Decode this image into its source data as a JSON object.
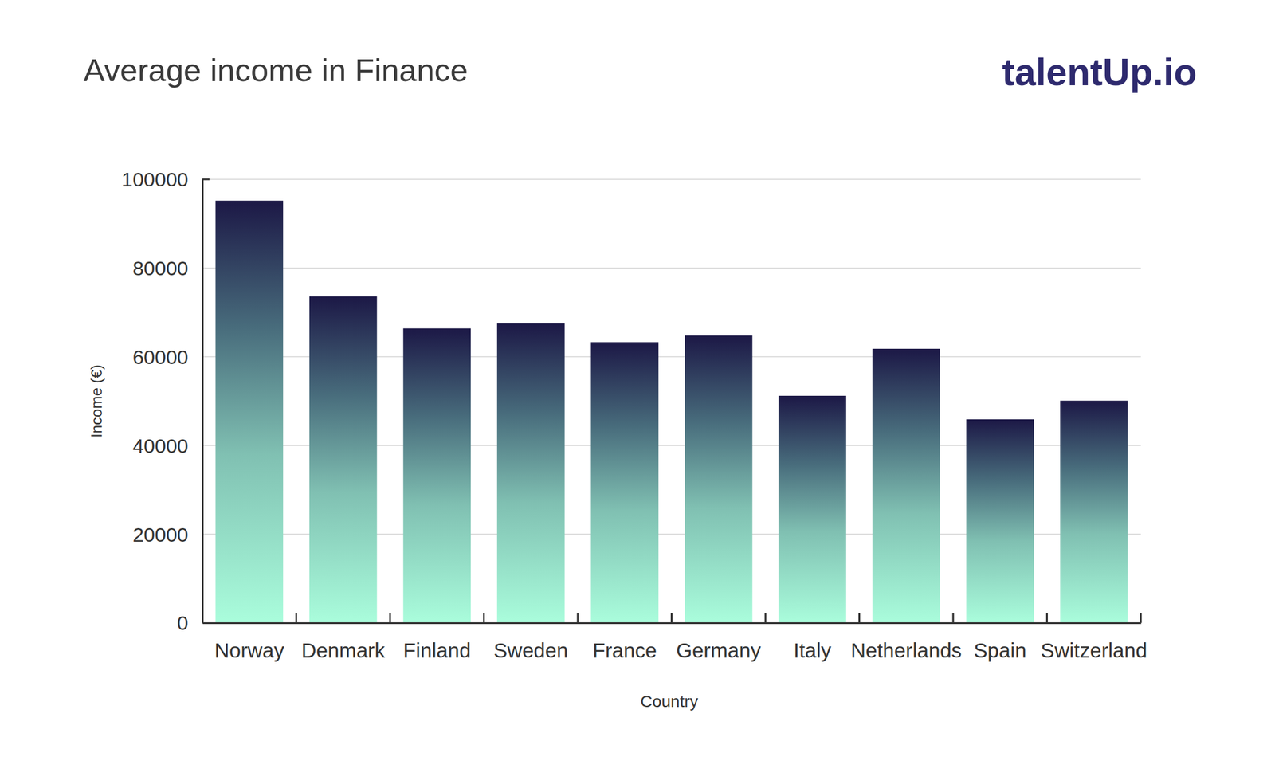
{
  "chart_data": {
    "type": "bar",
    "title": "Average income in Finance",
    "annotations": [
      "talentUp.io"
    ],
    "x_label": "Country",
    "y_label": "Income (€)",
    "categories": [
      "Norway",
      "Denmark",
      "Finland",
      "Sweden",
      "France",
      "Germany",
      "Italy",
      "Netherlands",
      "Spain",
      "Switzerland"
    ],
    "values": [
      95200,
      73600,
      66400,
      67500,
      63300,
      64800,
      51200,
      61800,
      45900,
      50100
    ],
    "ylim": [
      0,
      100000
    ],
    "yticks": [
      0,
      20000,
      40000,
      60000,
      80000,
      100000
    ],
    "grid": true
  }
}
